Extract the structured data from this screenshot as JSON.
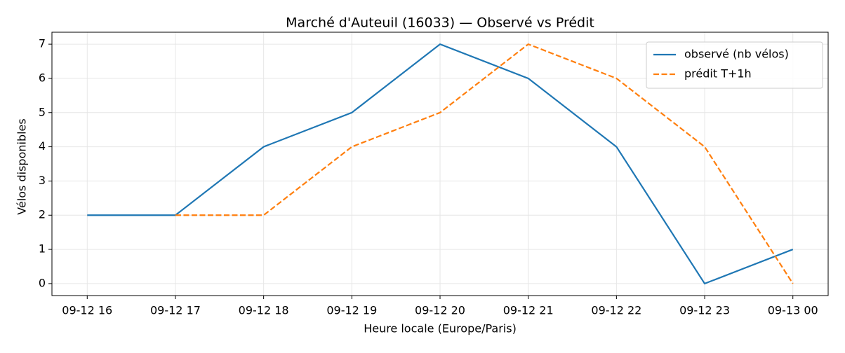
{
  "chart_data": {
    "type": "line",
    "title": "Marché d'Auteuil (16033) — Observé vs Prédit",
    "xlabel": "Heure locale (Europe/Paris)",
    "ylabel": "Vélos disponibles",
    "categories": [
      "09-12 16",
      "09-12 17",
      "09-12 18",
      "09-12 19",
      "09-12 20",
      "09-12 21",
      "09-12 22",
      "09-12 23",
      "09-13 00"
    ],
    "series": [
      {
        "name": "observé (nb vélos)",
        "color": "#1f77b4",
        "linestyle": "solid",
        "values": [
          2,
          2,
          4,
          5,
          7,
          6,
          4,
          0,
          1
        ]
      },
      {
        "name": "prédit T+1h",
        "color": "#ff7f0e",
        "linestyle": "dashed",
        "values": [
          null,
          2,
          2,
          4,
          5,
          7,
          6,
          4,
          0
        ]
      }
    ],
    "ylim": [
      -0.35,
      7.35
    ],
    "yticks": [
      0,
      1,
      2,
      3,
      4,
      5,
      6,
      7
    ],
    "grid": true,
    "legend": "upper right"
  }
}
